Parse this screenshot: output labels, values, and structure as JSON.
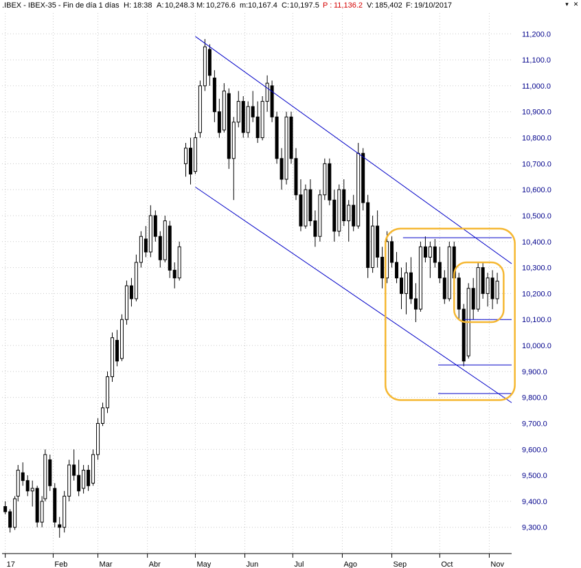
{
  "header": {
    "symbol": ".IBEX - IBEX-35 - Fin de día 1 días",
    "h_label": "H:",
    "h_value": "18:38",
    "a_label": "A:",
    "a_value": "10,248.3",
    "m_label": "M:",
    "m_value": "10,276.6",
    "mn_label": "m:",
    "mn_value": "10,167.4",
    "c_label": "C:",
    "c_value": "10,197.5",
    "p_label": "P :",
    "p_value": "11,136.2",
    "v_label": "V:",
    "v_value": "185,402",
    "f_label": "F:",
    "f_value": "19/10/2017",
    "colors": {
      "text": "#000000",
      "p_value": "#d40000",
      "accent": "#00008b"
    }
  },
  "window_buttons": [
    "▾",
    "✕"
  ],
  "chart_data": {
    "type": "candlestick",
    "title": "",
    "xlabel": "",
    "ylabel": "",
    "ylim": [
      9220,
      11280
    ],
    "y_ticks": [
      9300,
      9400,
      9500,
      9600,
      9700,
      9800,
      9900,
      10000,
      10100,
      10200,
      10300,
      10400,
      10500,
      10600,
      10700,
      10800,
      10900,
      11000,
      11100,
      11200
    ],
    "y_tick_labels": [
      "9,300.0",
      "9,400.0",
      "9,500.0",
      "9,600.0",
      "9,700.0",
      "9,800.0",
      "9,900.0",
      "10,000.0",
      "10,100.0",
      "10,200.0",
      "10,300.0",
      "10,400.0",
      "10,500.0",
      "10,600.0",
      "10,700.0",
      "10,800.0",
      "10,900.0",
      "11,000.0",
      "11,100.0",
      "11,200.0"
    ],
    "x_tick_labels": [
      "17",
      "Feb",
      "Mar",
      "Abr",
      "May",
      "Jun",
      "Jul",
      "Ago",
      "Sep",
      "Oct",
      "Nov"
    ],
    "x_tick_days": [
      2,
      32,
      60,
      91,
      121,
      152,
      182,
      213,
      244,
      274,
      305
    ],
    "x_range_days": [
      0,
      319
    ],
    "grid": true,
    "series_color": "#000000",
    "candles": [
      [
        2,
        9380,
        9400,
        9350,
        9360
      ],
      [
        5,
        9360,
        9370,
        9280,
        9300
      ],
      [
        8,
        9300,
        9420,
        9290,
        9410
      ],
      [
        10,
        9420,
        9540,
        9400,
        9520
      ],
      [
        13,
        9510,
        9550,
        9460,
        9480
      ],
      [
        16,
        9480,
        9500,
        9420,
        9440
      ],
      [
        19,
        9440,
        9480,
        9380,
        9450
      ],
      [
        22,
        9450,
        9460,
        9300,
        9320
      ],
      [
        25,
        9320,
        9420,
        9300,
        9400
      ],
      [
        27,
        9410,
        9600,
        9400,
        9580
      ],
      [
        30,
        9560,
        9580,
        9440,
        9460
      ],
      [
        33,
        9450,
        9470,
        9300,
        9320
      ],
      [
        36,
        9310,
        9340,
        9260,
        9300
      ],
      [
        39,
        9300,
        9440,
        9280,
        9420
      ],
      [
        42,
        9420,
        9560,
        9400,
        9540
      ],
      [
        45,
        9540,
        9600,
        9480,
        9500
      ],
      [
        48,
        9500,
        9560,
        9420,
        9440
      ],
      [
        51,
        9450,
        9540,
        9430,
        9520
      ],
      [
        54,
        9520,
        9540,
        9440,
        9460
      ],
      [
        57,
        9470,
        9600,
        9460,
        9580
      ],
      [
        60,
        9580,
        9720,
        9560,
        9700
      ],
      [
        63,
        9700,
        9780,
        9690,
        9760
      ],
      [
        66,
        9760,
        9900,
        9740,
        9880
      ],
      [
        69,
        9880,
        10050,
        9860,
        10030
      ],
      [
        72,
        10020,
        10060,
        9920,
        9940
      ],
      [
        75,
        9950,
        10120,
        9940,
        10100
      ],
      [
        78,
        10100,
        10250,
        10080,
        10230
      ],
      [
        81,
        10230,
        10260,
        10150,
        10180
      ],
      [
        84,
        10180,
        10350,
        10170,
        10320
      ],
      [
        87,
        10320,
        10440,
        10300,
        10420
      ],
      [
        90,
        10410,
        10460,
        10340,
        10360
      ],
      [
        93,
        10360,
        10540,
        10340,
        10500
      ],
      [
        96,
        10500,
        10520,
        10400,
        10420
      ],
      [
        99,
        10420,
        10440,
        10300,
        10330
      ],
      [
        102,
        10330,
        10500,
        10320,
        10480
      ],
      [
        105,
        10460,
        10480,
        10260,
        10290
      ],
      [
        108,
        10290,
        10320,
        10220,
        10260
      ],
      [
        111,
        10260,
        10400,
        10250,
        10380
      ],
      [
        115,
        10700,
        10780,
        10650,
        10760
      ],
      [
        118,
        10760,
        10800,
        10620,
        10660
      ],
      [
        121,
        10670,
        10820,
        10660,
        10800
      ],
      [
        124,
        10820,
        11020,
        10800,
        11000
      ],
      [
        127,
        11000,
        11180,
        10980,
        11150
      ],
      [
        130,
        11140,
        11160,
        11000,
        11040
      ],
      [
        133,
        11030,
        11060,
        10860,
        10900
      ],
      [
        136,
        10900,
        10950,
        10800,
        10820
      ],
      [
        139,
        10830,
        11010,
        10820,
        10980
      ],
      [
        142,
        10970,
        10990,
        10680,
        10720
      ],
      [
        145,
        10720,
        10880,
        10560,
        10860
      ],
      [
        148,
        10860,
        10980,
        10840,
        10940
      ],
      [
        151,
        10940,
        10960,
        10800,
        10820
      ],
      [
        154,
        10820,
        10940,
        10800,
        10920
      ],
      [
        157,
        10920,
        10980,
        10860,
        10880
      ],
      [
        160,
        10880,
        10940,
        10780,
        10800
      ],
      [
        163,
        10800,
        10960,
        10790,
        10940
      ],
      [
        166,
        10940,
        11040,
        10900,
        11010
      ],
      [
        169,
        11000,
        11020,
        10860,
        10880
      ],
      [
        172,
        10880,
        10900,
        10700,
        10720
      ],
      [
        175,
        10720,
        10760,
        10600,
        10640
      ],
      [
        178,
        10640,
        10900,
        10620,
        10880
      ],
      [
        181,
        10880,
        10900,
        10700,
        10720
      ],
      [
        184,
        10720,
        10760,
        10560,
        10580
      ],
      [
        187,
        10580,
        10640,
        10440,
        10460
      ],
      [
        190,
        10460,
        10620,
        10450,
        10600
      ],
      [
        193,
        10600,
        10640,
        10460,
        10480
      ],
      [
        196,
        10480,
        10520,
        10380,
        10420
      ],
      [
        199,
        10420,
        10600,
        10400,
        10580
      ],
      [
        202,
        10580,
        10720,
        10560,
        10700
      ],
      [
        205,
        10700,
        10720,
        10540,
        10560
      ],
      [
        208,
        10560,
        10600,
        10400,
        10440
      ],
      [
        211,
        10440,
        10620,
        10420,
        10600
      ],
      [
        214,
        10600,
        10640,
        10460,
        10480
      ],
      [
        217,
        10480,
        10560,
        10400,
        10540
      ],
      [
        220,
        10540,
        10580,
        10440,
        10460
      ],
      [
        223,
        10460,
        10780,
        10450,
        10740
      ],
      [
        226,
        10740,
        10760,
        10520,
        10550
      ],
      [
        229,
        10550,
        10580,
        10260,
        10300
      ],
      [
        232,
        10300,
        10500,
        10280,
        10460
      ],
      [
        235,
        10460,
        10520,
        10300,
        10340
      ],
      [
        238,
        10340,
        10380,
        10220,
        10260
      ],
      [
        241,
        10260,
        10440,
        10240,
        10400
      ],
      [
        244,
        10400,
        10420,
        10300,
        10320
      ],
      [
        247,
        10320,
        10360,
        10240,
        10260
      ],
      [
        250,
        10260,
        10300,
        10140,
        10200
      ],
      [
        253,
        10200,
        10320,
        10120,
        10280
      ],
      [
        256,
        10280,
        10340,
        10160,
        10180
      ],
      [
        259,
        10180,
        10240,
        10090,
        10140
      ],
      [
        262,
        10140,
        10400,
        10130,
        10380
      ],
      [
        265,
        10380,
        10420,
        10320,
        10340
      ],
      [
        268,
        10340,
        10400,
        10260,
        10380
      ],
      [
        271,
        10380,
        10410,
        10300,
        10320
      ],
      [
        274,
        10320,
        10380,
        10240,
        10260
      ],
      [
        277,
        10260,
        10290,
        10160,
        10180
      ],
      [
        280,
        10180,
        10400,
        10170,
        10380
      ],
      [
        283,
        10380,
        10400,
        10240,
        10260
      ],
      [
        286,
        10260,
        10280,
        10100,
        10140
      ],
      [
        289,
        10140,
        10160,
        9920,
        9940
      ],
      [
        292,
        9960,
        10240,
        9950,
        10220
      ],
      [
        295,
        10220,
        10260,
        10100,
        10140
      ],
      [
        298,
        10140,
        10320,
        10130,
        10300
      ],
      [
        301,
        10300,
        10320,
        10180,
        10200
      ],
      [
        304,
        10200,
        10280,
        10150,
        10260
      ],
      [
        307,
        10260,
        10290,
        10140,
        10180
      ],
      [
        310,
        10180,
        10280,
        10160,
        10248
      ]
    ],
    "channel_upper": {
      "from": [
        121,
        11190
      ],
      "to": [
        319,
        10315
      ]
    },
    "channel_lower": {
      "from": [
        121,
        10610
      ],
      "to": [
        319,
        9780
      ]
    },
    "support_lines": [
      {
        "from_day": 251,
        "to_day": 319,
        "value": 10415
      },
      {
        "from_day": 289,
        "to_day": 319,
        "value": 10100
      },
      {
        "from_day": 273,
        "to_day": 319,
        "value": 9925
      },
      {
        "from_day": 273,
        "to_day": 319,
        "value": 9815
      }
    ],
    "highlight_boxes": [
      {
        "x0_day": 240,
        "x1_day": 321,
        "y_top": 10450,
        "y_bottom": 9790,
        "color": "#f5b731"
      },
      {
        "x0_day": 283,
        "x1_day": 314,
        "y_top": 10320,
        "y_bottom": 10090,
        "color": "#f5b731"
      }
    ],
    "line_color": "#0000c8",
    "tick_label_color": "#00008b"
  }
}
